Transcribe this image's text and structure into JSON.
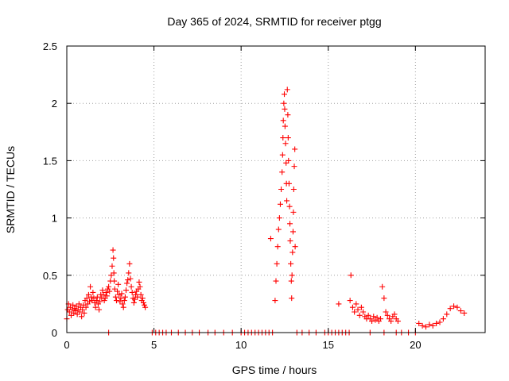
{
  "chart_data": {
    "type": "scatter",
    "title": "Day 365 of 2024, SRMTID for receiver ptgg",
    "xlabel": "GPS time / hours",
    "ylabel": "SRMTID / TECUs",
    "xlim": [
      0,
      24
    ],
    "ylim": [
      0,
      2.5
    ],
    "xticks": [
      0,
      5,
      10,
      15,
      20
    ],
    "yticks": [
      0,
      0.5,
      1,
      1.5,
      2,
      2.5
    ],
    "xtick_labels": [
      "0",
      "5",
      "10",
      "15",
      "20"
    ],
    "ytick_labels": [
      "0",
      "0.5",
      "1",
      "1.5",
      "2",
      "2.5"
    ],
    "grid": true,
    "marker": "+",
    "color": "#ff0000",
    "series": [
      {
        "name": "SRMTID",
        "points": [
          [
            0.0,
            0.12
          ],
          [
            0.05,
            0.2
          ],
          [
            0.1,
            0.25
          ],
          [
            0.15,
            0.18
          ],
          [
            0.2,
            0.22
          ],
          [
            0.25,
            0.15
          ],
          [
            0.3,
            0.2
          ],
          [
            0.35,
            0.24
          ],
          [
            0.4,
            0.17
          ],
          [
            0.45,
            0.21
          ],
          [
            0.5,
            0.19
          ],
          [
            0.55,
            0.23
          ],
          [
            0.6,
            0.16
          ],
          [
            0.65,
            0.2
          ],
          [
            0.7,
            0.25
          ],
          [
            0.75,
            0.18
          ],
          [
            0.8,
            0.22
          ],
          [
            0.85,
            0.14
          ],
          [
            0.9,
            0.2
          ],
          [
            0.95,
            0.24
          ],
          [
            1.0,
            0.17
          ],
          [
            1.05,
            0.28
          ],
          [
            1.1,
            0.22
          ],
          [
            1.15,
            0.3
          ],
          [
            1.2,
            0.25
          ],
          [
            1.25,
            0.33
          ],
          [
            1.3,
            0.27
          ],
          [
            1.35,
            0.4
          ],
          [
            1.4,
            0.31
          ],
          [
            1.45,
            0.28
          ],
          [
            1.5,
            0.35
          ],
          [
            1.55,
            0.3
          ],
          [
            1.6,
            0.26
          ],
          [
            1.65,
            0.22
          ],
          [
            1.7,
            0.28
          ],
          [
            1.75,
            0.31
          ],
          [
            1.8,
            0.25
          ],
          [
            1.85,
            0.2
          ],
          [
            1.9,
            0.27
          ],
          [
            1.95,
            0.33
          ],
          [
            2.0,
            0.3
          ],
          [
            2.05,
            0.37
          ],
          [
            2.1,
            0.33
          ],
          [
            2.15,
            0.28
          ],
          [
            2.2,
            0.3
          ],
          [
            2.25,
            0.35
          ],
          [
            2.3,
            0.32
          ],
          [
            2.35,
            0.38
          ],
          [
            2.4,
            0.4
          ],
          [
            2.45,
            0.36
          ],
          [
            2.5,
            0.45
          ],
          [
            2.55,
            0.5
          ],
          [
            2.6,
            0.58
          ],
          [
            2.65,
            0.72
          ],
          [
            2.68,
            0.65
          ],
          [
            2.7,
            0.52
          ],
          [
            2.72,
            0.45
          ],
          [
            2.75,
            0.38
          ],
          [
            2.8,
            0.31
          ],
          [
            2.85,
            0.28
          ],
          [
            2.9,
            0.36
          ],
          [
            2.95,
            0.42
          ],
          [
            3.0,
            0.33
          ],
          [
            3.05,
            0.27
          ],
          [
            3.1,
            0.3
          ],
          [
            3.15,
            0.34
          ],
          [
            3.2,
            0.25
          ],
          [
            3.25,
            0.22
          ],
          [
            3.3,
            0.28
          ],
          [
            3.35,
            0.31
          ],
          [
            3.4,
            0.37
          ],
          [
            3.45,
            0.43
          ],
          [
            3.5,
            0.46
          ],
          [
            3.55,
            0.52
          ],
          [
            3.6,
            0.6
          ],
          [
            3.65,
            0.47
          ],
          [
            3.7,
            0.4
          ],
          [
            3.75,
            0.35
          ],
          [
            3.8,
            0.3
          ],
          [
            3.85,
            0.26
          ],
          [
            3.9,
            0.29
          ],
          [
            3.95,
            0.33
          ],
          [
            4.0,
            0.36
          ],
          [
            4.05,
            0.31
          ],
          [
            4.1,
            0.38
          ],
          [
            4.15,
            0.44
          ],
          [
            4.2,
            0.4
          ],
          [
            4.25,
            0.33
          ],
          [
            4.3,
            0.28
          ],
          [
            4.35,
            0.3
          ],
          [
            4.4,
            0.26
          ],
          [
            4.45,
            0.24
          ],
          [
            4.5,
            0.22
          ],
          [
            2.4,
            0.0
          ],
          [
            4.9,
            0.0
          ],
          [
            5.1,
            0.0
          ],
          [
            5.3,
            0.0
          ],
          [
            5.5,
            0.0
          ],
          [
            5.7,
            0.0
          ],
          [
            6.0,
            0.0
          ],
          [
            6.4,
            0.0
          ],
          [
            6.8,
            0.0
          ],
          [
            7.2,
            0.0
          ],
          [
            7.6,
            0.0
          ],
          [
            8.1,
            0.0
          ],
          [
            8.5,
            0.0
          ],
          [
            9.0,
            0.0
          ],
          [
            9.5,
            0.0
          ],
          [
            10.0,
            0.0
          ],
          [
            10.2,
            0.0
          ],
          [
            10.4,
            0.0
          ],
          [
            10.6,
            0.0
          ],
          [
            10.8,
            0.0
          ],
          [
            11.0,
            0.0
          ],
          [
            11.2,
            0.0
          ],
          [
            11.4,
            0.0
          ],
          [
            11.6,
            0.0
          ],
          [
            11.8,
            0.0
          ],
          [
            13.2,
            0.0
          ],
          [
            13.5,
            0.0
          ],
          [
            13.9,
            0.0
          ],
          [
            14.3,
            0.0
          ],
          [
            14.8,
            0.0
          ],
          [
            15.0,
            0.0
          ],
          [
            15.2,
            0.0
          ],
          [
            15.4,
            0.0
          ],
          [
            15.6,
            0.0
          ],
          [
            15.8,
            0.0
          ],
          [
            16.0,
            0.0
          ],
          [
            16.2,
            0.0
          ],
          [
            17.4,
            0.0
          ],
          [
            18.2,
            0.0
          ],
          [
            18.9,
            0.0
          ],
          [
            19.2,
            0.0
          ],
          [
            19.6,
            0.0
          ],
          [
            20.0,
            0.0
          ],
          [
            11.7,
            0.82
          ],
          [
            11.95,
            0.28
          ],
          [
            12.0,
            0.45
          ],
          [
            12.05,
            0.6
          ],
          [
            12.1,
            0.75
          ],
          [
            12.15,
            0.9
          ],
          [
            12.2,
            1.0
          ],
          [
            12.25,
            1.12
          ],
          [
            12.3,
            1.25
          ],
          [
            12.35,
            1.4
          ],
          [
            12.38,
            1.55
          ],
          [
            12.4,
            1.7
          ],
          [
            12.42,
            1.85
          ],
          [
            12.45,
            2.0
          ],
          [
            12.48,
            2.08
          ],
          [
            12.5,
            1.95
          ],
          [
            12.52,
            1.8
          ],
          [
            12.55,
            1.65
          ],
          [
            12.58,
            1.48
          ],
          [
            12.6,
            1.3
          ],
          [
            12.62,
            1.15
          ],
          [
            12.65,
            2.12
          ],
          [
            12.68,
            1.9
          ],
          [
            12.7,
            1.7
          ],
          [
            12.72,
            1.5
          ],
          [
            12.75,
            1.3
          ],
          [
            12.78,
            1.1
          ],
          [
            12.8,
            0.95
          ],
          [
            12.82,
            0.8
          ],
          [
            12.85,
            0.6
          ],
          [
            12.88,
            0.45
          ],
          [
            12.9,
            0.3
          ],
          [
            12.92,
            0.5
          ],
          [
            12.95,
            0.7
          ],
          [
            12.98,
            0.88
          ],
          [
            13.0,
            1.05
          ],
          [
            13.02,
            1.25
          ],
          [
            13.05,
            1.45
          ],
          [
            13.08,
            1.6
          ],
          [
            13.1,
            0.75
          ],
          [
            16.25,
            0.28
          ],
          [
            16.4,
            0.22
          ],
          [
            16.5,
            0.18
          ],
          [
            16.6,
            0.25
          ],
          [
            16.7,
            0.2
          ],
          [
            16.8,
            0.15
          ],
          [
            16.9,
            0.22
          ],
          [
            17.0,
            0.18
          ],
          [
            17.1,
            0.14
          ],
          [
            17.2,
            0.12
          ],
          [
            17.3,
            0.15
          ],
          [
            17.4,
            0.12
          ],
          [
            17.5,
            0.1
          ],
          [
            17.6,
            0.14
          ],
          [
            17.7,
            0.11
          ],
          [
            17.8,
            0.13
          ],
          [
            17.9,
            0.1
          ],
          [
            18.0,
            0.12
          ],
          [
            18.1,
            0.4
          ],
          [
            18.2,
            0.3
          ],
          [
            18.3,
            0.18
          ],
          [
            18.4,
            0.15
          ],
          [
            18.5,
            0.12
          ],
          [
            18.6,
            0.1
          ],
          [
            18.7,
            0.14
          ],
          [
            18.8,
            0.16
          ],
          [
            18.9,
            0.12
          ],
          [
            19.0,
            0.1
          ],
          [
            16.3,
            0.5
          ],
          [
            15.6,
            0.25
          ],
          [
            20.2,
            0.08
          ],
          [
            20.4,
            0.06
          ],
          [
            20.6,
            0.05
          ],
          [
            20.8,
            0.07
          ],
          [
            21.0,
            0.06
          ],
          [
            21.2,
            0.08
          ],
          [
            21.4,
            0.09
          ],
          [
            21.6,
            0.12
          ],
          [
            21.8,
            0.16
          ],
          [
            22.0,
            0.21
          ],
          [
            22.2,
            0.23
          ],
          [
            22.4,
            0.22
          ],
          [
            22.6,
            0.19
          ],
          [
            22.8,
            0.17
          ]
        ]
      }
    ]
  }
}
